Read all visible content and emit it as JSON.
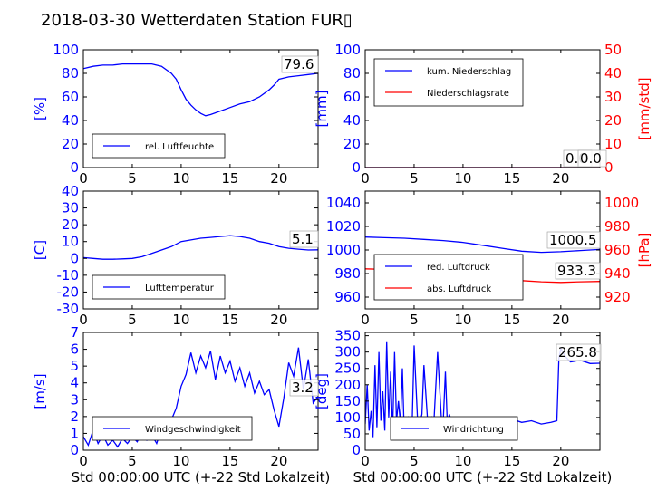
{
  "title": "2018-03-30 Wetterdaten Station FUR▯",
  "colors": {
    "blue": "#0000ff",
    "red": "#ff0000",
    "lightblue": "#8080ff",
    "black": "#000000"
  },
  "chart_data": [
    {
      "id": "humidity",
      "type": "line",
      "ylabel_left": "[%]",
      "ylim": [
        0,
        100
      ],
      "yticks": [
        0,
        20,
        40,
        60,
        80,
        100
      ],
      "xlim": [
        0,
        24
      ],
      "xticks": [
        0,
        5,
        10,
        15,
        20
      ],
      "legend": [
        {
          "name": "rel. Luftfeuchte",
          "color": "#0000ff"
        }
      ],
      "legend_position": "lower-left",
      "annotations": [
        "79.6"
      ],
      "series": [
        {
          "name": "rel. Luftfeuchte",
          "axis": "left",
          "color": "#0000ff",
          "x": [
            0,
            1,
            2,
            3,
            4,
            5,
            6,
            7,
            8,
            9,
            9.5,
            10,
            10.5,
            11,
            11.5,
            12,
            12.5,
            13,
            14,
            15,
            16,
            17,
            18,
            19,
            19.5,
            20,
            21,
            22,
            23,
            24
          ],
          "y": [
            84,
            86,
            87,
            87,
            88,
            88,
            88,
            88,
            86,
            80,
            75,
            66,
            58,
            53,
            49,
            46,
            44,
            45,
            48,
            51,
            54,
            56,
            60,
            66,
            70,
            75,
            77,
            78,
            79,
            80
          ]
        }
      ]
    },
    {
      "id": "precip",
      "type": "line",
      "ylabel_left": "[mm]",
      "ylabel_right": "[mm/std]",
      "ylim": [
        0,
        100
      ],
      "yticks": [
        0,
        20,
        40,
        60,
        80,
        100
      ],
      "ylim_right": [
        0,
        50
      ],
      "yticks_right": [
        0,
        10,
        20,
        30,
        40,
        50
      ],
      "xlim": [
        0,
        24
      ],
      "xticks": [
        0,
        5,
        10,
        15,
        20
      ],
      "legend": [
        {
          "name": "kum. Niederschlag",
          "color": "#0000ff"
        },
        {
          "name": "Niederschlagsrate",
          "color": "#ff0000"
        }
      ],
      "legend_position": "upper-left",
      "annotations": [
        "0.0",
        "0.0"
      ],
      "series": [
        {
          "name": "kum. Niederschlag",
          "axis": "left",
          "color": "#0000ff",
          "x": [
            0,
            24
          ],
          "y": [
            0,
            0
          ]
        },
        {
          "name": "Niederschlagsrate",
          "axis": "right",
          "color": "#ff0000",
          "x": [
            0,
            24
          ],
          "y": [
            0,
            0
          ]
        }
      ]
    },
    {
      "id": "temperature",
      "type": "line",
      "ylabel_left": "[C]",
      "ylim": [
        -30,
        40
      ],
      "yticks": [
        -30,
        -20,
        -10,
        0,
        10,
        20,
        30,
        40
      ],
      "xlim": [
        0,
        24
      ],
      "xticks": [
        0,
        5,
        10,
        15,
        20
      ],
      "legend": [
        {
          "name": "Lufttemperatur",
          "color": "#0000ff"
        }
      ],
      "legend_position": "lower-left",
      "annotations": [
        "5.1"
      ],
      "series": [
        {
          "name": "Lufttemperatur",
          "axis": "left",
          "color": "#0000ff",
          "x": [
            0,
            1,
            2,
            3,
            4,
            5,
            6,
            7,
            8,
            9,
            10,
            11,
            12,
            13,
            14,
            15,
            16,
            17,
            18,
            19,
            20,
            21,
            22,
            23,
            24
          ],
          "y": [
            0.5,
            0,
            -0.5,
            -0.5,
            -0.3,
            0,
            1,
            3,
            5,
            7,
            10,
            11,
            12,
            12.5,
            13,
            13.5,
            13,
            12,
            10,
            9,
            7,
            6,
            5.5,
            5,
            5.1
          ]
        }
      ]
    },
    {
      "id": "pressure",
      "type": "line",
      "ylabel_right": "[hPa]",
      "ylim": [
        950,
        1050
      ],
      "yticks": [
        960,
        980,
        1000,
        1020,
        1040
      ],
      "ylim_right": [
        910,
        1010
      ],
      "yticks_right": [
        920,
        940,
        960,
        980,
        1000
      ],
      "xlim": [
        0,
        24
      ],
      "xticks": [
        0,
        5,
        10,
        15,
        20
      ],
      "legend": [
        {
          "name": "red. Luftdruck",
          "color": "#0000ff"
        },
        {
          "name": "abs. Luftdruck",
          "color": "#ff0000"
        }
      ],
      "legend_position": "lower-left",
      "annotations": [
        "1000.5",
        "933.3"
      ],
      "series": [
        {
          "name": "red. Luftdruck",
          "axis": "left",
          "color": "#0000ff",
          "x": [
            0,
            2,
            4,
            6,
            8,
            10,
            12,
            14,
            16,
            18,
            20,
            22,
            24
          ],
          "y": [
            1011,
            1010.5,
            1010,
            1009,
            1008,
            1006.5,
            1004,
            1001.5,
            999,
            998,
            998.5,
            999.5,
            1000.5
          ]
        },
        {
          "name": "abs. Luftdruck",
          "axis": "right",
          "color": "#ff0000",
          "x": [
            0,
            2,
            4,
            6,
            8,
            10,
            12,
            14,
            16,
            18,
            20,
            22,
            24
          ],
          "y": [
            944,
            943.5,
            942.5,
            941.5,
            940.5,
            939,
            937.5,
            935.5,
            934,
            933,
            932.5,
            933,
            933.3
          ]
        }
      ]
    },
    {
      "id": "wind_speed",
      "type": "line",
      "ylabel_left": "[m/s]",
      "ylim": [
        0,
        7
      ],
      "yticks": [
        0,
        1,
        2,
        3,
        4,
        5,
        6,
        7
      ],
      "xlabel": "Std 00:00:00 UTC (+-22 Std Lokalzeit)",
      "xlim": [
        0,
        24
      ],
      "xticks": [
        0,
        5,
        10,
        15,
        20
      ],
      "legend": [
        {
          "name": "Windgeschwindigkeit",
          "color": "#0000ff"
        }
      ],
      "legend_position": "lower-left",
      "annotations": [
        "3.2"
      ],
      "series": [
        {
          "name": "Windgeschwindigkeit",
          "axis": "left",
          "color": "#0000ff",
          "x": [
            0,
            0.5,
            1,
            1.5,
            2,
            2.5,
            3,
            3.5,
            4,
            4.5,
            5,
            5.5,
            6,
            6.5,
            7,
            7.5,
            8,
            8.5,
            9,
            9.5,
            10,
            10.5,
            11,
            11.5,
            12,
            12.5,
            13,
            13.5,
            14,
            14.5,
            15,
            15.5,
            16,
            16.5,
            17,
            17.5,
            18,
            18.5,
            19,
            19.5,
            20,
            20.5,
            21,
            21.5,
            22,
            22.5,
            23,
            23.5,
            24
          ],
          "y": [
            0.8,
            0.3,
            1.2,
            0.4,
            0.9,
            0.3,
            0.6,
            0.2,
            0.7,
            0.4,
            0.8,
            0.5,
            1.1,
            0.6,
            0.9,
            0.4,
            1.3,
            0.8,
            1.8,
            2.5,
            3.8,
            4.5,
            5.8,
            4.6,
            5.6,
            4.9,
            5.9,
            4.2,
            5.6,
            4.6,
            5.3,
            4.1,
            4.9,
            3.8,
            4.6,
            3.4,
            4.1,
            3.3,
            3.6,
            2.4,
            1.4,
            3.1,
            5.2,
            4.4,
            6.1,
            3.6,
            5.4,
            2.8,
            3.2
          ]
        }
      ]
    },
    {
      "id": "wind_dir",
      "type": "line",
      "ylabel_left": "[deg]",
      "ylim": [
        0,
        360
      ],
      "yticks": [
        0,
        50,
        100,
        150,
        200,
        250,
        300,
        350
      ],
      "xlabel": "Std 00:00:00 UTC (+-22 Std Lokalzeit)",
      "xlim": [
        0,
        24
      ],
      "xticks": [
        0,
        5,
        10,
        15,
        20
      ],
      "legend": [
        {
          "name": "Windrichtung",
          "color": "#0000ff"
        }
      ],
      "legend_position": "lower-left",
      "annotations": [
        "265.8"
      ],
      "series": [
        {
          "name": "Windrichtung",
          "axis": "left",
          "color": "#0000ff",
          "x": [
            0,
            0.2,
            0.4,
            0.6,
            0.8,
            1,
            1.2,
            1.4,
            1.6,
            1.8,
            2,
            2.2,
            2.4,
            2.6,
            2.8,
            3,
            3.2,
            3.4,
            3.6,
            3.8,
            4,
            4.4,
            4.8,
            5,
            5.4,
            5.8,
            6,
            6.4,
            6.8,
            7,
            7.4,
            7.8,
            8,
            8.2,
            8.4,
            8.6,
            8.8,
            9,
            9.4,
            10,
            11,
            12,
            13,
            14,
            15,
            16,
            17,
            18,
            19,
            19.6,
            19.8,
            20,
            20.5,
            21,
            22,
            23,
            24
          ],
          "y": [
            80,
            200,
            60,
            120,
            40,
            260,
            70,
            300,
            90,
            180,
            60,
            330,
            100,
            240,
            50,
            300,
            90,
            150,
            80,
            250,
            40,
            100,
            80,
            320,
            60,
            110,
            260,
            80,
            100,
            70,
            300,
            90,
            100,
            240,
            80,
            110,
            90,
            100,
            95,
            100,
            95,
            90,
            95,
            90,
            95,
            85,
            90,
            80,
            85,
            90,
            280,
            310,
            285,
            270,
            275,
            265,
            265.8
          ]
        }
      ]
    }
  ]
}
